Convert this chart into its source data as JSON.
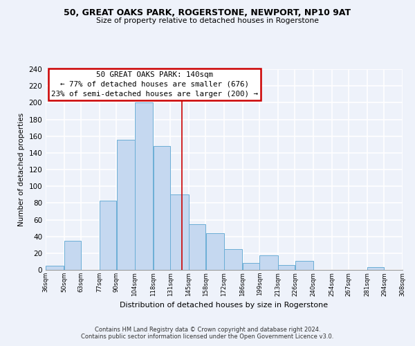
{
  "title_line1": "50, GREAT OAKS PARK, ROGERSTONE, NEWPORT, NP10 9AT",
  "title_line2": "Size of property relative to detached houses in Rogerstone",
  "xlabel": "Distribution of detached houses by size in Rogerstone",
  "ylabel": "Number of detached properties",
  "bin_edges": [
    36,
    50,
    63,
    77,
    90,
    104,
    118,
    131,
    145,
    158,
    172,
    186,
    199,
    213,
    226,
    240,
    254,
    267,
    281,
    294,
    308
  ],
  "bin_labels": [
    "36sqm",
    "50sqm",
    "63sqm",
    "77sqm",
    "90sqm",
    "104sqm",
    "118sqm",
    "131sqm",
    "145sqm",
    "158sqm",
    "172sqm",
    "186sqm",
    "199sqm",
    "213sqm",
    "226sqm",
    "240sqm",
    "254sqm",
    "267sqm",
    "281sqm",
    "294sqm",
    "308sqm"
  ],
  "counts": [
    5,
    35,
    0,
    83,
    156,
    200,
    148,
    90,
    55,
    44,
    25,
    8,
    17,
    6,
    11,
    0,
    0,
    0,
    3,
    0
  ],
  "bar_color": "#c5d8f0",
  "bar_edge_color": "#6baed6",
  "property_line_x": 140,
  "property_line_color": "#cc0000",
  "annotation_title": "50 GREAT OAKS PARK: 140sqm",
  "annotation_line1": "← 77% of detached houses are smaller (676)",
  "annotation_line2": "23% of semi-detached houses are larger (200) →",
  "annotation_box_edge": "#cc0000",
  "ylim": [
    0,
    240
  ],
  "yticks": [
    0,
    20,
    40,
    60,
    80,
    100,
    120,
    140,
    160,
    180,
    200,
    220,
    240
  ],
  "footer_line1": "Contains HM Land Registry data © Crown copyright and database right 2024.",
  "footer_line2": "Contains public sector information licensed under the Open Government Licence v3.0.",
  "bg_color": "#eef2fa"
}
